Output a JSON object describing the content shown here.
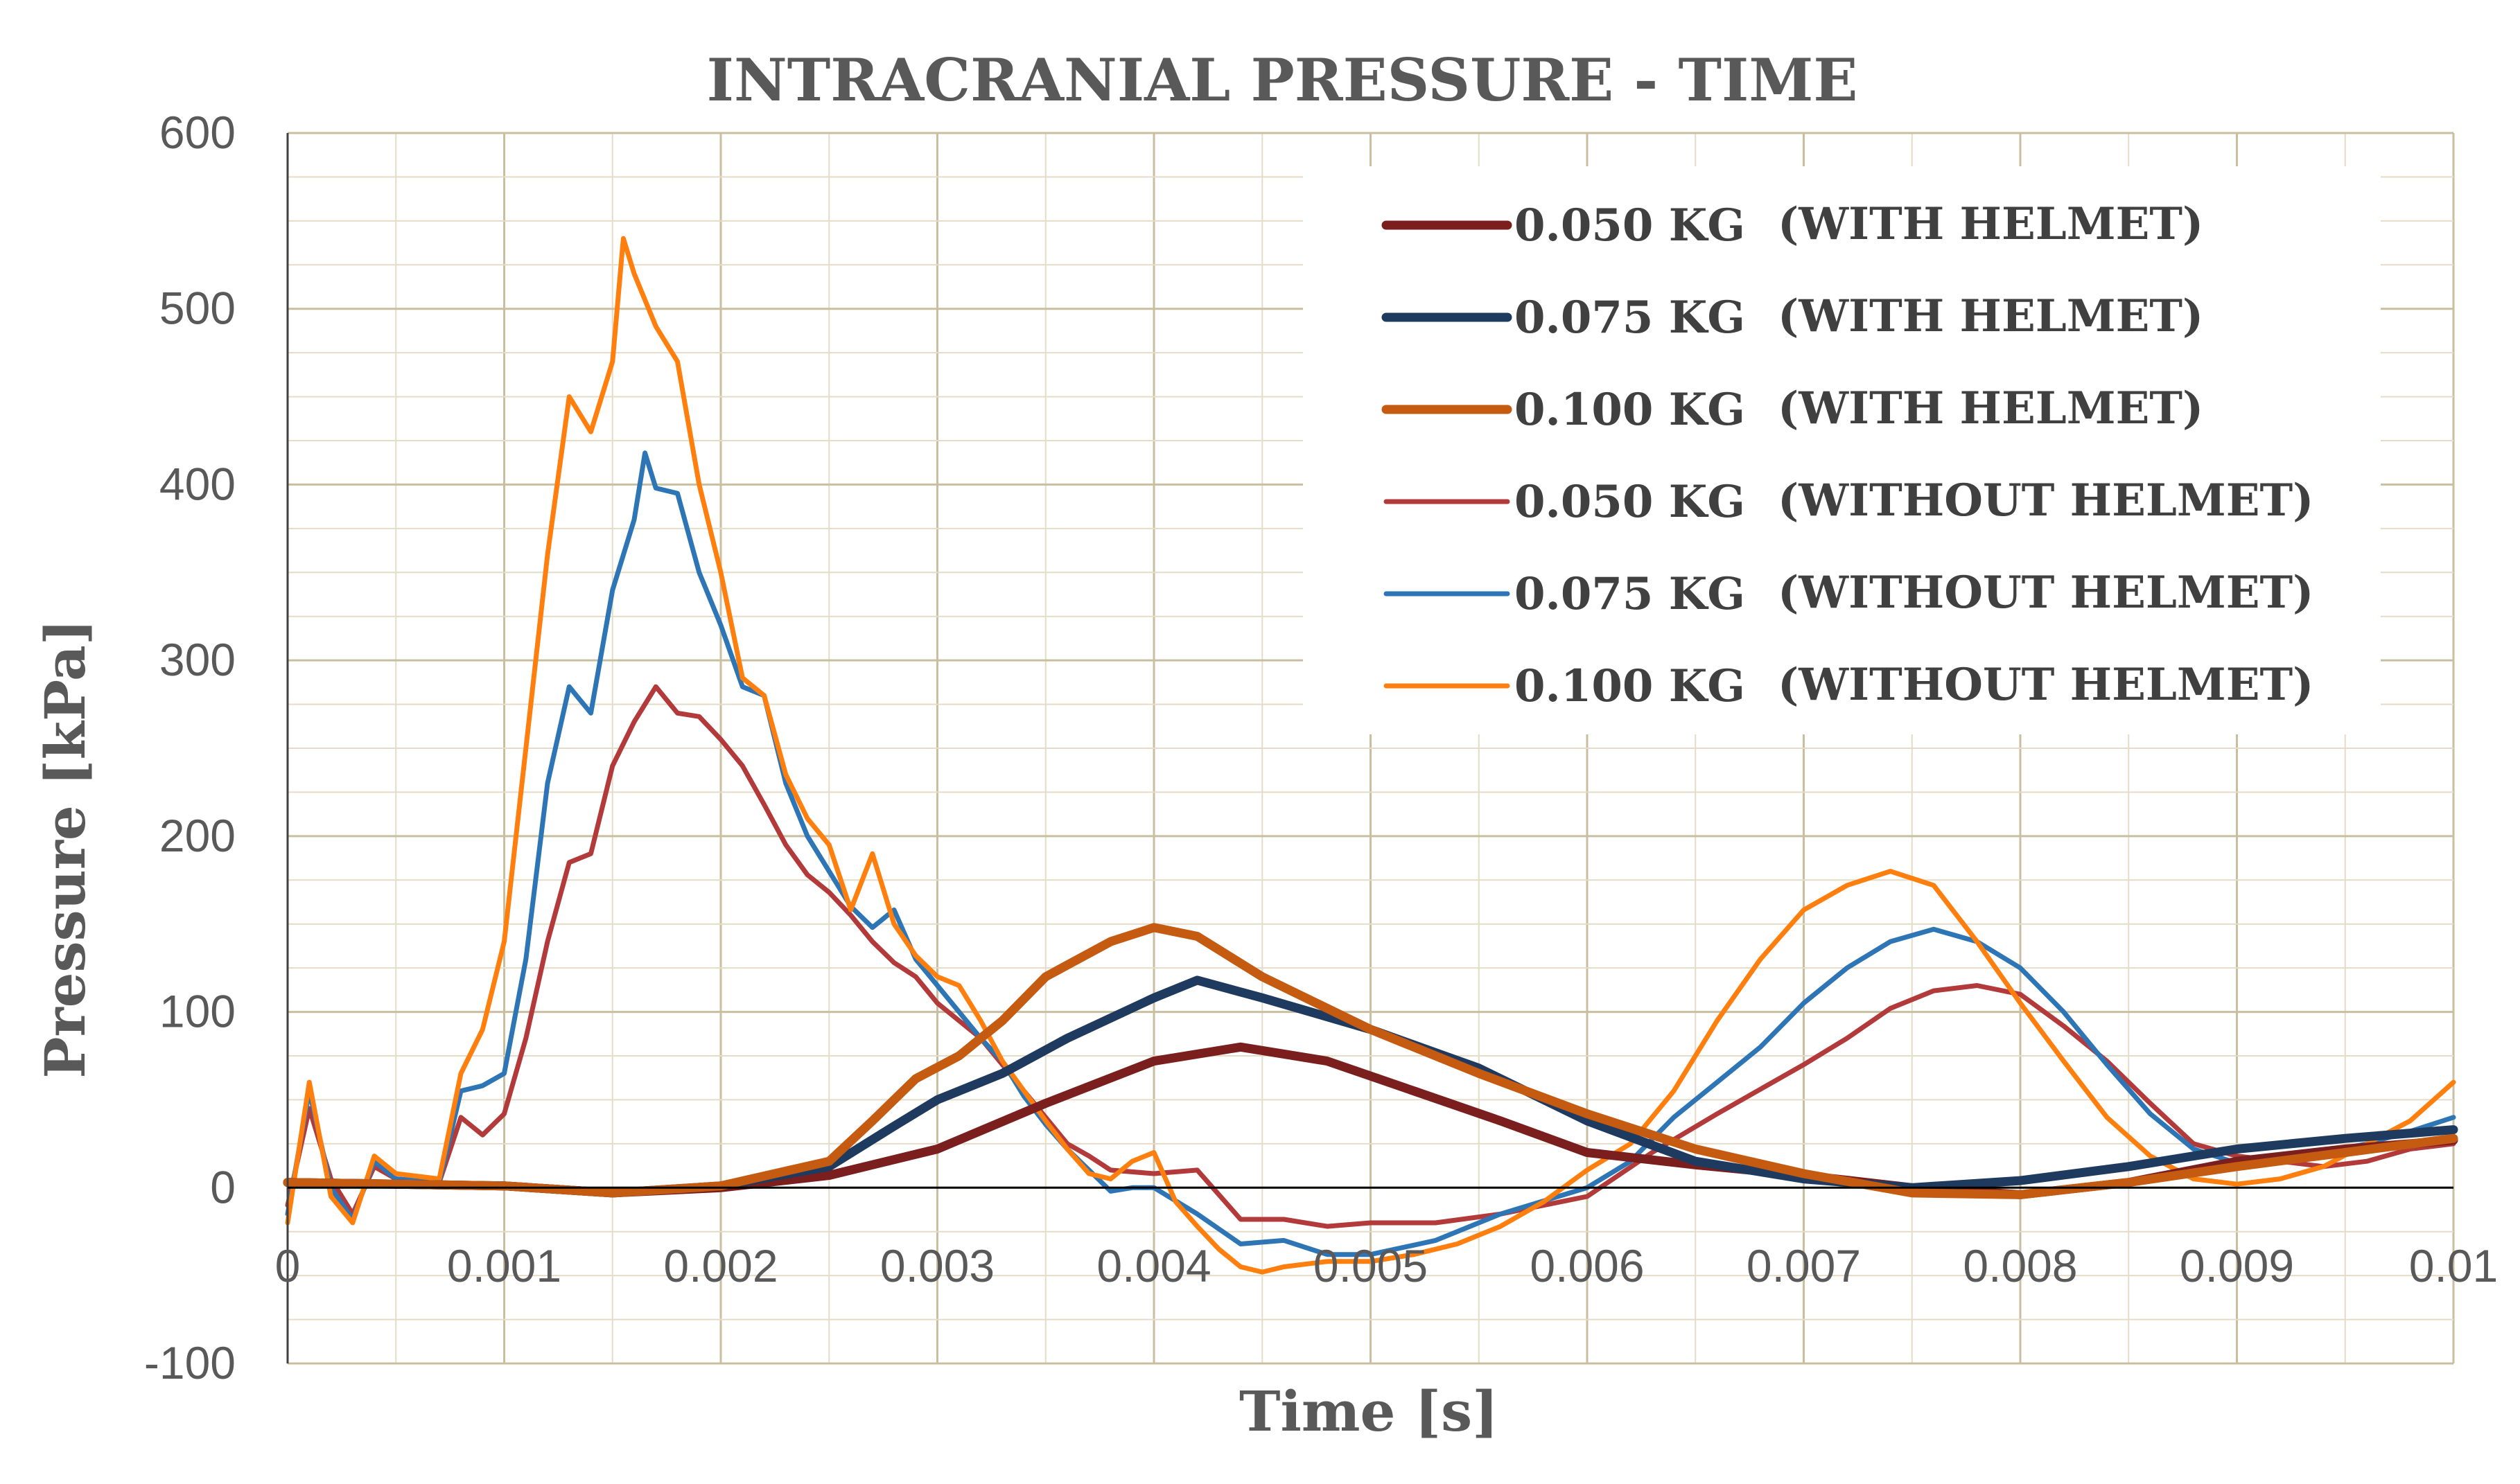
{
  "chart_data": {
    "type": "line",
    "title": "INTRACRANIAL PRESSURE - TIME",
    "xlabel": "Time [s]",
    "ylabel": "Pressure [kPa]",
    "xlim": [
      0,
      0.01
    ],
    "ylim": [
      -100,
      600
    ],
    "x_ticks": [
      "0",
      "0.001",
      "0.002",
      "0.003",
      "0.004",
      "0.005",
      "0.006",
      "0.007",
      "0.008",
      "0.009",
      "0.01"
    ],
    "y_ticks": [
      "600",
      "500",
      "400",
      "300",
      "200",
      "100",
      "0",
      "-100"
    ],
    "grid": true,
    "legend_position": "top-right",
    "series": [
      {
        "name": "0.050 KG",
        "condition": "(WITH HELMET)",
        "color": "#7b1e1e",
        "style": "thick",
        "points": [
          [
            0,
            3
          ],
          [
            0.001,
            1
          ],
          [
            0.0015,
            -3
          ],
          [
            0.002,
            0
          ],
          [
            0.0025,
            7
          ],
          [
            0.003,
            22
          ],
          [
            0.0035,
            48
          ],
          [
            0.004,
            72
          ],
          [
            0.0044,
            80
          ],
          [
            0.0048,
            72
          ],
          [
            0.0052,
            55
          ],
          [
            0.0056,
            38
          ],
          [
            0.006,
            20
          ],
          [
            0.0065,
            13
          ],
          [
            0.007,
            7
          ],
          [
            0.0075,
            0
          ],
          [
            0.008,
            -4
          ],
          [
            0.0085,
            3
          ],
          [
            0.009,
            15
          ],
          [
            0.0095,
            22
          ],
          [
            0.01,
            27
          ]
        ]
      },
      {
        "name": "0.075 KG",
        "condition": "(WITH HELMET)",
        "color": "#1f3a5f",
        "style": "thick",
        "points": [
          [
            0,
            3
          ],
          [
            0.001,
            1
          ],
          [
            0.0015,
            -3
          ],
          [
            0.002,
            1
          ],
          [
            0.0025,
            12
          ],
          [
            0.0028,
            35
          ],
          [
            0.003,
            50
          ],
          [
            0.0033,
            65
          ],
          [
            0.0036,
            85
          ],
          [
            0.004,
            108
          ],
          [
            0.0042,
            118
          ],
          [
            0.0045,
            108
          ],
          [
            0.005,
            90
          ],
          [
            0.0055,
            68
          ],
          [
            0.006,
            38
          ],
          [
            0.0065,
            15
          ],
          [
            0.007,
            5
          ],
          [
            0.0075,
            0
          ],
          [
            0.008,
            4
          ],
          [
            0.0085,
            12
          ],
          [
            0.009,
            22
          ],
          [
            0.0095,
            28
          ],
          [
            0.01,
            33
          ]
        ]
      },
      {
        "name": "0.100 KG",
        "condition": "(WITH HELMET)",
        "color": "#c55a11",
        "style": "thick",
        "points": [
          [
            0,
            3
          ],
          [
            0.001,
            1
          ],
          [
            0.0015,
            -3
          ],
          [
            0.002,
            1
          ],
          [
            0.0025,
            15
          ],
          [
            0.0027,
            38
          ],
          [
            0.0029,
            62
          ],
          [
            0.0031,
            75
          ],
          [
            0.0033,
            95
          ],
          [
            0.0035,
            120
          ],
          [
            0.0038,
            140
          ],
          [
            0.004,
            148
          ],
          [
            0.0042,
            143
          ],
          [
            0.0045,
            120
          ],
          [
            0.005,
            90
          ],
          [
            0.0055,
            65
          ],
          [
            0.006,
            42
          ],
          [
            0.0065,
            22
          ],
          [
            0.007,
            8
          ],
          [
            0.0075,
            -3
          ],
          [
            0.008,
            -4
          ],
          [
            0.0085,
            3
          ],
          [
            0.009,
            12
          ],
          [
            0.0095,
            20
          ],
          [
            0.01,
            28
          ]
        ]
      },
      {
        "name": "0.050 KG",
        "condition": "(WITHOUT HELMET)",
        "color": "#b33a3a",
        "style": "thin",
        "points": [
          [
            0,
            -10
          ],
          [
            0.0001,
            45
          ],
          [
            0.0002,
            5
          ],
          [
            0.0003,
            -15
          ],
          [
            0.0004,
            12
          ],
          [
            0.0005,
            5
          ],
          [
            0.0007,
            3
          ],
          [
            0.0008,
            40
          ],
          [
            0.0009,
            30
          ],
          [
            0.001,
            42
          ],
          [
            0.0011,
            85
          ],
          [
            0.0012,
            140
          ],
          [
            0.0013,
            185
          ],
          [
            0.0014,
            190
          ],
          [
            0.0015,
            240
          ],
          [
            0.0016,
            265
          ],
          [
            0.0017,
            285
          ],
          [
            0.0018,
            270
          ],
          [
            0.0019,
            268
          ],
          [
            0.002,
            255
          ],
          [
            0.0021,
            240
          ],
          [
            0.0022,
            218
          ],
          [
            0.0023,
            195
          ],
          [
            0.0024,
            178
          ],
          [
            0.0025,
            168
          ],
          [
            0.0026,
            155
          ],
          [
            0.0027,
            140
          ],
          [
            0.0028,
            128
          ],
          [
            0.0029,
            120
          ],
          [
            0.003,
            105
          ],
          [
            0.0031,
            95
          ],
          [
            0.0032,
            85
          ],
          [
            0.0033,
            70
          ],
          [
            0.0034,
            55
          ],
          [
            0.0035,
            40
          ],
          [
            0.0036,
            25
          ],
          [
            0.0037,
            18
          ],
          [
            0.0038,
            10
          ],
          [
            0.004,
            8
          ],
          [
            0.0042,
            10
          ],
          [
            0.0044,
            -18
          ],
          [
            0.0046,
            -18
          ],
          [
            0.0048,
            -22
          ],
          [
            0.005,
            -20
          ],
          [
            0.0053,
            -20
          ],
          [
            0.0056,
            -15
          ],
          [
            0.006,
            -5
          ],
          [
            0.0063,
            20
          ],
          [
            0.0066,
            42
          ],
          [
            0.007,
            70
          ],
          [
            0.0072,
            85
          ],
          [
            0.0074,
            102
          ],
          [
            0.0076,
            112
          ],
          [
            0.0078,
            115
          ],
          [
            0.008,
            110
          ],
          [
            0.0082,
            92
          ],
          [
            0.0084,
            72
          ],
          [
            0.0086,
            48
          ],
          [
            0.0088,
            25
          ],
          [
            0.009,
            18
          ],
          [
            0.0092,
            15
          ],
          [
            0.0094,
            12
          ],
          [
            0.0096,
            15
          ],
          [
            0.0098,
            22
          ],
          [
            0.01,
            25
          ]
        ]
      },
      {
        "name": "0.075 KG",
        "condition": "(WITHOUT HELMET)",
        "color": "#2e75b6",
        "style": "thin",
        "points": [
          [
            0,
            -15
          ],
          [
            0.0001,
            55
          ],
          [
            0.0002,
            0
          ],
          [
            0.0003,
            -18
          ],
          [
            0.0004,
            15
          ],
          [
            0.0005,
            5
          ],
          [
            0.0007,
            3
          ],
          [
            0.0008,
            55
          ],
          [
            0.0009,
            58
          ],
          [
            0.001,
            65
          ],
          [
            0.0011,
            130
          ],
          [
            0.0012,
            230
          ],
          [
            0.0013,
            285
          ],
          [
            0.0014,
            270
          ],
          [
            0.0015,
            340
          ],
          [
            0.0016,
            380
          ],
          [
            0.00165,
            418
          ],
          [
            0.0017,
            398
          ],
          [
            0.0018,
            395
          ],
          [
            0.0019,
            350
          ],
          [
            0.002,
            320
          ],
          [
            0.0021,
            285
          ],
          [
            0.0022,
            280
          ],
          [
            0.0023,
            230
          ],
          [
            0.0024,
            200
          ],
          [
            0.0025,
            180
          ],
          [
            0.0026,
            160
          ],
          [
            0.0027,
            148
          ],
          [
            0.0028,
            158
          ],
          [
            0.0029,
            130
          ],
          [
            0.003,
            115
          ],
          [
            0.0031,
            100
          ],
          [
            0.0032,
            85
          ],
          [
            0.0033,
            72
          ],
          [
            0.0034,
            52
          ],
          [
            0.0035,
            36
          ],
          [
            0.0036,
            22
          ],
          [
            0.0037,
            10
          ],
          [
            0.0038,
            -2
          ],
          [
            0.0039,
            0
          ],
          [
            0.004,
            0
          ],
          [
            0.0042,
            -15
          ],
          [
            0.0044,
            -32
          ],
          [
            0.0046,
            -30
          ],
          [
            0.0048,
            -38
          ],
          [
            0.005,
            -38
          ],
          [
            0.0053,
            -30
          ],
          [
            0.0056,
            -15
          ],
          [
            0.006,
            0
          ],
          [
            0.0062,
            15
          ],
          [
            0.0064,
            40
          ],
          [
            0.0066,
            60
          ],
          [
            0.0068,
            80
          ],
          [
            0.007,
            105
          ],
          [
            0.0072,
            125
          ],
          [
            0.0074,
            140
          ],
          [
            0.0076,
            147
          ],
          [
            0.0078,
            140
          ],
          [
            0.008,
            125
          ],
          [
            0.0082,
            100
          ],
          [
            0.0084,
            70
          ],
          [
            0.0086,
            42
          ],
          [
            0.0088,
            22
          ],
          [
            0.009,
            14
          ],
          [
            0.0092,
            15
          ],
          [
            0.0094,
            20
          ],
          [
            0.0096,
            25
          ],
          [
            0.0098,
            32
          ],
          [
            0.01,
            40
          ]
        ]
      },
      {
        "name": "0.100 KG",
        "condition": "(WITHOUT HELMET)",
        "color": "#ff7f0e",
        "style": "thin",
        "points": [
          [
            0,
            -20
          ],
          [
            0.0001,
            60
          ],
          [
            0.0002,
            -5
          ],
          [
            0.0003,
            -20
          ],
          [
            0.0004,
            18
          ],
          [
            0.0005,
            8
          ],
          [
            0.0007,
            5
          ],
          [
            0.0008,
            65
          ],
          [
            0.0009,
            90
          ],
          [
            0.001,
            140
          ],
          [
            0.0011,
            250
          ],
          [
            0.0012,
            360
          ],
          [
            0.0013,
            450
          ],
          [
            0.0014,
            430
          ],
          [
            0.0015,
            470
          ],
          [
            0.00155,
            540
          ],
          [
            0.0016,
            520
          ],
          [
            0.0017,
            490
          ],
          [
            0.0018,
            470
          ],
          [
            0.0019,
            400
          ],
          [
            0.002,
            350
          ],
          [
            0.0021,
            290
          ],
          [
            0.0022,
            280
          ],
          [
            0.0023,
            235
          ],
          [
            0.0024,
            210
          ],
          [
            0.0025,
            195
          ],
          [
            0.0026,
            158
          ],
          [
            0.0027,
            190
          ],
          [
            0.0028,
            150
          ],
          [
            0.0029,
            132
          ],
          [
            0.003,
            120
          ],
          [
            0.0031,
            115
          ],
          [
            0.0032,
            95
          ],
          [
            0.0033,
            72
          ],
          [
            0.0034,
            55
          ],
          [
            0.0035,
            38
          ],
          [
            0.0036,
            22
          ],
          [
            0.0037,
            8
          ],
          [
            0.0038,
            5
          ],
          [
            0.0039,
            15
          ],
          [
            0.004,
            20
          ],
          [
            0.0041,
            -8
          ],
          [
            0.0042,
            -22
          ],
          [
            0.0043,
            -35
          ],
          [
            0.0044,
            -45
          ],
          [
            0.0045,
            -48
          ],
          [
            0.0046,
            -45
          ],
          [
            0.0048,
            -42
          ],
          [
            0.005,
            -42
          ],
          [
            0.0052,
            -38
          ],
          [
            0.0054,
            -32
          ],
          [
            0.0056,
            -22
          ],
          [
            0.0058,
            -8
          ],
          [
            0.006,
            10
          ],
          [
            0.0062,
            25
          ],
          [
            0.0064,
            55
          ],
          [
            0.0066,
            95
          ],
          [
            0.0068,
            130
          ],
          [
            0.007,
            158
          ],
          [
            0.0072,
            172
          ],
          [
            0.0074,
            180
          ],
          [
            0.0076,
            172
          ],
          [
            0.0078,
            140
          ],
          [
            0.008,
            105
          ],
          [
            0.0082,
            72
          ],
          [
            0.0084,
            40
          ],
          [
            0.0086,
            18
          ],
          [
            0.0088,
            5
          ],
          [
            0.009,
            2
          ],
          [
            0.0092,
            5
          ],
          [
            0.0094,
            12
          ],
          [
            0.0096,
            25
          ],
          [
            0.0098,
            38
          ],
          [
            0.01,
            60
          ]
        ]
      }
    ]
  }
}
